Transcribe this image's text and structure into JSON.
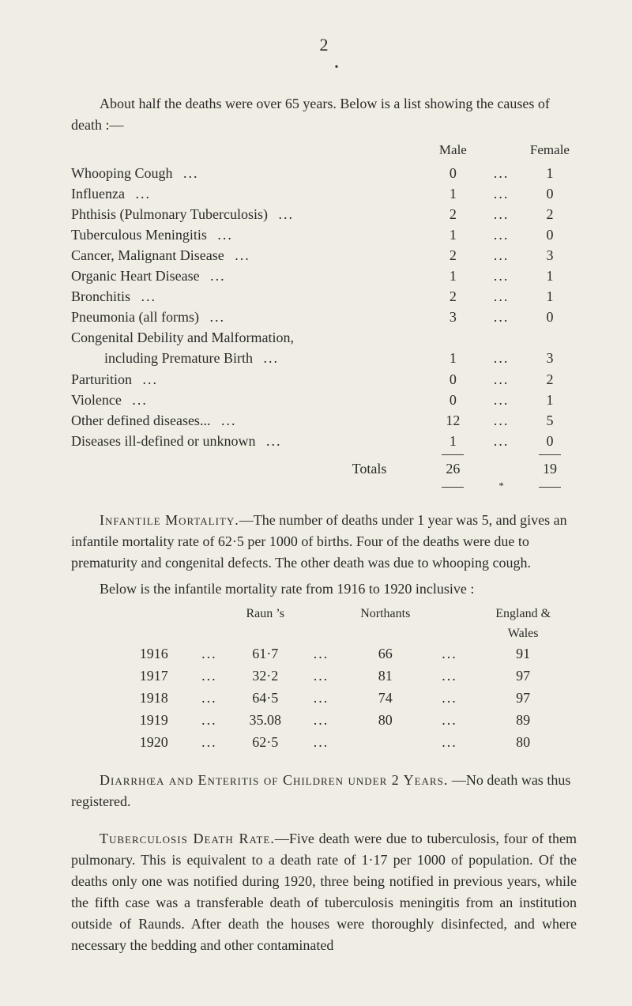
{
  "page_number": "2",
  "small_dot": "•",
  "intro": "About half the deaths were over 65 years.  Below is a list showing the causes of death :—",
  "col_headers": {
    "male": "Male",
    "female": "Female"
  },
  "rows": [
    {
      "label": "Whooping Cough",
      "male": "0",
      "female": "1"
    },
    {
      "label": "Influenza",
      "male": "1",
      "female": "0"
    },
    {
      "label": "Phthisis (Pulmonary Tuberculosis)",
      "male": "2",
      "female": "2"
    },
    {
      "label": "Tuberculous Meningitis",
      "male": "1",
      "female": "0"
    },
    {
      "label": "Cancer, Malignant Disease",
      "male": "2",
      "female": "3"
    },
    {
      "label": "Organic Heart Disease",
      "male": "1",
      "female": "1"
    },
    {
      "label": "Bronchitis",
      "male": "2",
      "female": "1"
    },
    {
      "label": "Pneumonia (all forms)",
      "male": "3",
      "female": "0"
    },
    {
      "label": "Congenital Debility and Malformation,",
      "male": "",
      "female": ""
    },
    {
      "label_sub": "including Premature Birth",
      "male": "1",
      "female": "3"
    },
    {
      "label": "Parturition",
      "male": "0",
      "female": "2"
    },
    {
      "label": "Violence",
      "male": "0",
      "female": "1"
    },
    {
      "label": "Other defined diseases...",
      "male": "12",
      "female": "5"
    },
    {
      "label": "Diseases ill-defined or unknown",
      "male": "1",
      "female": "0"
    }
  ],
  "totals": {
    "label": "Totals",
    "male": "26",
    "female": "19"
  },
  "asterisk": "*",
  "infantile_para": "Infantile Mortality.—The number of deaths under 1 year was 5, and gives an infantile mortality rate of 62·5 per 1000 of births. Four of the deaths were due to prematurity and congenital defects. The other death was due to whooping cough.",
  "infantile_caps": "Infantile Mortality.",
  "infantile_rest": "—The number of deaths under 1 year was 5, and gives an infantile mortality rate of 62·5 per 1000 of births. Four of the deaths were due to prematurity and congenital defects. The other death was due to whooping cough.",
  "below_line": "Below is the infantile mortality rate from 1916 to 1920 inclusive :",
  "inf_headers": {
    "raun": "Raun ’s",
    "nor": "Northants",
    "eng": "England & Wales"
  },
  "inf_rows": [
    {
      "year": "1916",
      "raun": "61·7",
      "nor": "66",
      "eng": "91"
    },
    {
      "year": "1917",
      "raun": "32·2",
      "nor": "81",
      "eng": "97"
    },
    {
      "year": "1918",
      "raun": "64·5",
      "nor": "74",
      "eng": "97"
    },
    {
      "year": "1919",
      "raun": "35.08",
      "nor": "80",
      "eng": "89"
    },
    {
      "year": "1920",
      "raun": "62·5",
      "nor": "",
      "eng": "80"
    }
  ],
  "diarr_caps": "Diarrhœa and Enteritis of Children under 2 Years.",
  "diarr_rest": " —No death was thus registered.",
  "tb_caps": "Tuberculosis Death Rate.",
  "tb_rest": "—Five death were due to tuber­culosis, four of them pulmonary.  This is equivalent to a death rate of 1·17 per 1000 of population.  Of the deaths only one was noti­fied during 1920, three being notified in previous years, while the fifth case was a transferable death of tuberculosis meningitis from an institution outside of Raunds.  After death the houses were thoroughly disinfected, and where necessary the bedding and other contaminated",
  "dots3": "...",
  "colors": {
    "bg": "#f0ede4",
    "text": "#2a2a28",
    "rule": "#3a3a35"
  }
}
